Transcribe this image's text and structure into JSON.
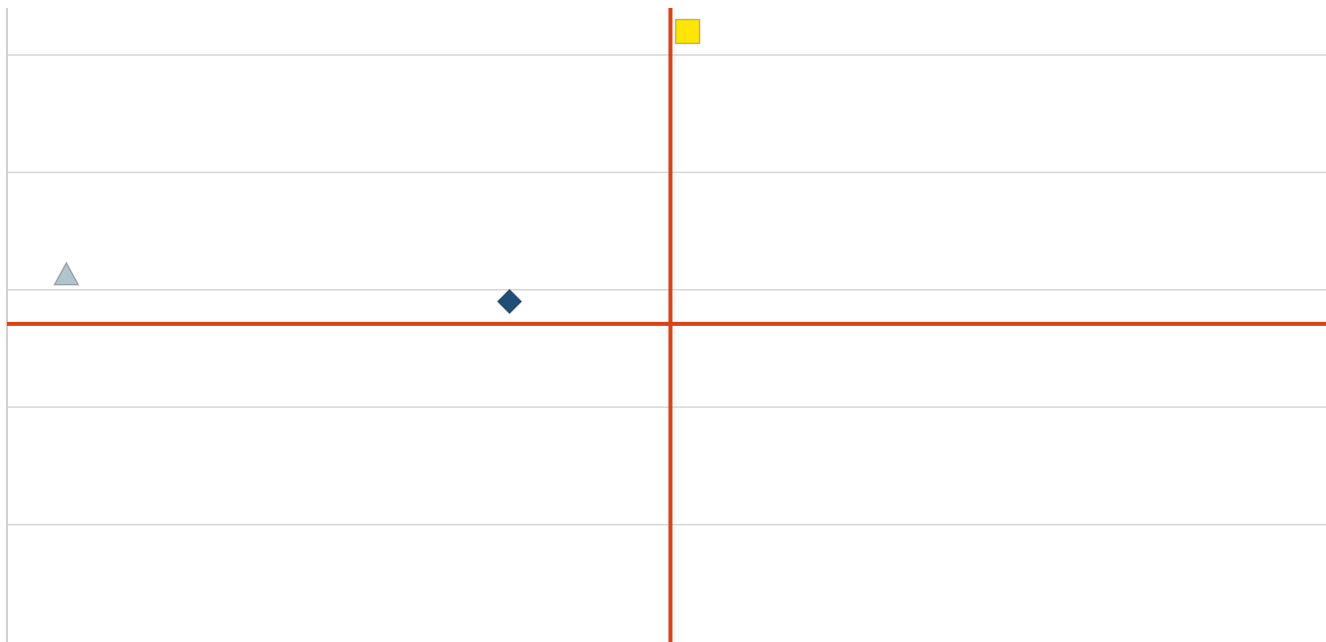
{
  "chart_data": {
    "type": "scatter",
    "xlim": [
      0,
      100
    ],
    "ylim": [
      -3,
      2.4
    ],
    "yticks": [
      -2,
      -1,
      0,
      1,
      2
    ],
    "grid": true,
    "reference_lines": {
      "x": 50.3,
      "y": -0.29,
      "color": "#d84315"
    },
    "series": [
      {
        "marker": "triangle",
        "color": "#b0c4cc",
        "x": [
          4.5
        ],
        "values": [
          0.12
        ]
      },
      {
        "marker": "diamond",
        "color": "#1f4e79",
        "x": [
          38.1
        ],
        "values": [
          -0.1
        ]
      },
      {
        "marker": "square",
        "color": "#ffe600",
        "x": [
          51.6
        ],
        "values": [
          2.2
        ]
      }
    ]
  }
}
